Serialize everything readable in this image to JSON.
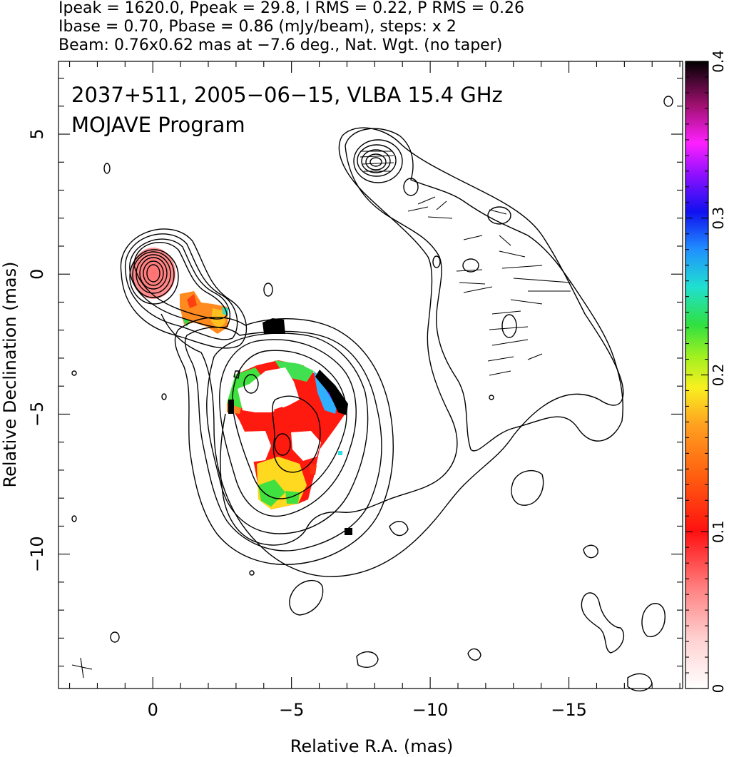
{
  "header": {
    "line1": "Ipeak = 1620.0, Ppeak = 29.8, I RMS = 0.22, P RMS = 0.26",
    "line2": "Ibase = 0.70, Pbase = 0.86 (mJy/beam), steps: x 2",
    "line3": "Beam: 0.76x0.62 mas at −7.6 deg., Nat. Wgt. (no taper)"
  },
  "annotations": {
    "line1": "2037+511, 2005−06−15, VLBA 15.4 GHz",
    "line2": "MOJAVE Program"
  },
  "colors": {
    "low": "#ffe8e8",
    "red": "#ff2010",
    "orange": "#ff8c10",
    "yellow": "#f0f020",
    "green": "#30e030",
    "cyan": "#20e0e0",
    "blue": "#1020ff",
    "magenta": "#ff20ff",
    "black": "#000000"
  },
  "chart_data": {
    "type": "heatmap",
    "xlabel": "Relative R.A. (mas)",
    "ylabel": "Relative Declination (mas)",
    "xlim": [
      3.4,
      -19.1
    ],
    "ylim": [
      -14.8,
      7.6
    ],
    "x_ticks": [
      0,
      -5,
      -10,
      -15
    ],
    "y_ticks": [
      5,
      0,
      -5,
      -10
    ],
    "colorbar": {
      "range": [
        0,
        0.4
      ],
      "ticks": [
        0,
        0.1,
        0.2,
        0.3,
        0.4
      ],
      "ticklabels": [
        "0",
        "0.1",
        "0.2",
        "0.3",
        "0.4"
      ]
    },
    "contour_base_mJy_per_beam": 0.7,
    "contour_step_factor": 2,
    "peak_intensity_mJy_per_beam": 1620.0,
    "peak_polarized_mJy_per_beam": 29.8,
    "beam": {
      "major_mas": 0.76,
      "minor_mas": 0.62,
      "pa_deg": -7.6
    }
  }
}
